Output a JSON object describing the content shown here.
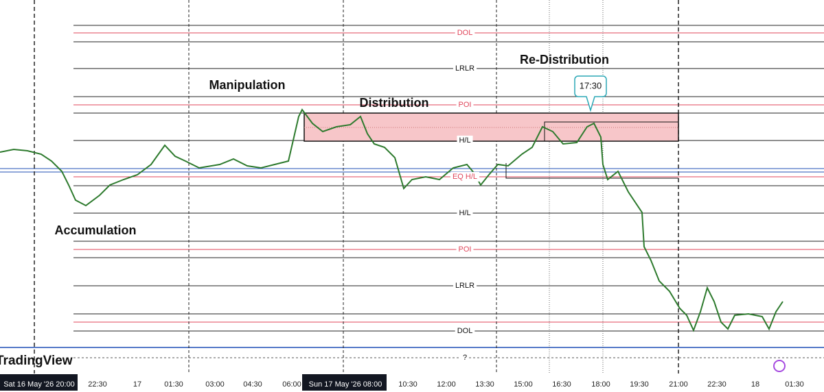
{
  "annotations": [
    "Re-Distribution",
    "Manipulation",
    "Distribution",
    "Accumulation"
  ],
  "callout": "17:30",
  "levels": [
    "DOL",
    "LRLR",
    "POI",
    "H/L",
    "EQ H/L",
    "H/L",
    "POI",
    "LRLR",
    "DOL",
    "?"
  ],
  "brand": "TradingView",
  "time_axis": [
    "Sat 16 May '26  20:00",
    "22:30",
    "17",
    "01:30",
    "03:00",
    "04:30",
    "06:00",
    "Sun 17 May '26  08:00",
    "10:30",
    "12:00",
    "13:30",
    "15:00",
    "16:30",
    "18:00",
    "19:30",
    "21:00",
    "22:30",
    "18",
    "01:30"
  ]
}
